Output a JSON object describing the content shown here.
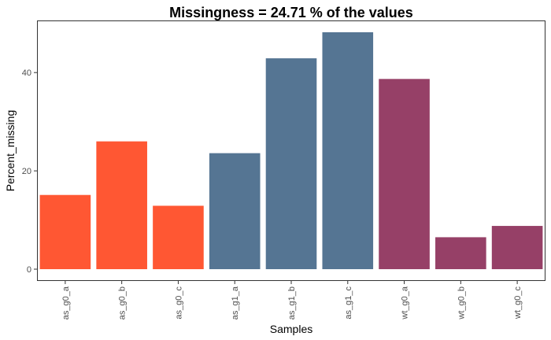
{
  "chart_data": {
    "type": "bar",
    "title": "Missingness =  24.71 % of the values",
    "xlabel": "Samples",
    "ylabel": "Percent_missing",
    "categories": [
      "as_g0_a",
      "as_g0_b",
      "as_g0_c",
      "as_g1_a",
      "as_g1_b",
      "as_g1_c",
      "wt_g0_a",
      "wt_g0_b",
      "wt_g0_c"
    ],
    "values": [
      15.1,
      26.0,
      12.9,
      23.6,
      42.9,
      48.2,
      38.7,
      6.5,
      8.8
    ],
    "bar_colors": [
      "#FF5733",
      "#FF5733",
      "#FF5733",
      "#557593",
      "#557593",
      "#557593",
      "#964067",
      "#964067",
      "#964067"
    ],
    "ylim": [
      -2.4,
      50.6
    ],
    "yticks": [
      0,
      20,
      40
    ],
    "grid": false,
    "legend": "none"
  }
}
